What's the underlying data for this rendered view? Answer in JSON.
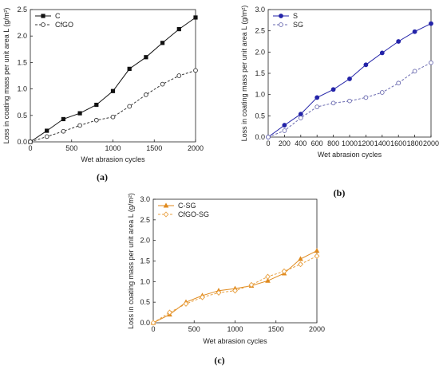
{
  "panel_labels": [
    "(a)",
    "(b)",
    "(c)"
  ],
  "chart_data": [
    {
      "type": "line",
      "panel": "(a)",
      "xlabel": "Wet abrasion cycles",
      "ylabel": "Loss in coating mass per unit area L (g/m²)",
      "xlim": [
        0,
        2000
      ],
      "ylim": [
        0,
        2.5
      ],
      "xticks": [
        "0",
        "500",
        "1000",
        "1500",
        "2000"
      ],
      "yticks": [
        "0.0",
        "0.5",
        "1.0",
        "1.5",
        "2.0",
        "2.5"
      ],
      "x": [
        0,
        200,
        400,
        600,
        800,
        1000,
        1200,
        1400,
        1600,
        1800,
        2000
      ],
      "legend": "top-left",
      "grid": false,
      "series": [
        {
          "name": "C",
          "color": "#111111",
          "style": "solid",
          "marker": "filled-square",
          "values": [
            0.0,
            0.21,
            0.43,
            0.54,
            0.7,
            0.96,
            1.38,
            1.6,
            1.87,
            2.13,
            2.35
          ]
        },
        {
          "name": "CfGO",
          "color": "#333333",
          "style": "dashed",
          "marker": "open-circle",
          "values": [
            0.0,
            0.1,
            0.2,
            0.31,
            0.41,
            0.47,
            0.67,
            0.89,
            1.09,
            1.25,
            1.35
          ]
        }
      ]
    },
    {
      "type": "line",
      "panel": "(b)",
      "xlabel": "Wet abrasion cycles",
      "ylabel": "Loss in coating mass per unit area L (g/m²)",
      "xlim": [
        0,
        2000
      ],
      "ylim": [
        0,
        3.0
      ],
      "xticks": [
        "0",
        "200",
        "400",
        "600",
        "800",
        "1000",
        "1200",
        "1400",
        "1600",
        "1800",
        "2000"
      ],
      "yticks": [
        "0.0",
        "0.5",
        "1.0",
        "1.5",
        "2.0",
        "2.5",
        "3.0"
      ],
      "x": [
        0,
        200,
        400,
        600,
        800,
        1000,
        1200,
        1400,
        1600,
        1800,
        2000
      ],
      "legend": "top-left",
      "grid": false,
      "series": [
        {
          "name": "S",
          "color": "#2323a8",
          "style": "solid",
          "marker": "filled-circle",
          "values": [
            0.0,
            0.28,
            0.54,
            0.93,
            1.12,
            1.37,
            1.7,
            1.98,
            2.25,
            2.48,
            2.67
          ]
        },
        {
          "name": "SG",
          "color": "#6a6ab0",
          "style": "dashed",
          "marker": "open-circle",
          "values": [
            0.0,
            0.15,
            0.45,
            0.71,
            0.8,
            0.85,
            0.93,
            1.05,
            1.27,
            1.55,
            1.75
          ]
        }
      ]
    },
    {
      "type": "line",
      "panel": "(c)",
      "xlabel": "Wet abrasion cycles",
      "ylabel": "Loss in coating mass per unit area L (g/m²)",
      "xlim": [
        0,
        2000
      ],
      "ylim": [
        0,
        3.0
      ],
      "xticks": [
        "0",
        "500",
        "1000",
        "1500",
        "2000"
      ],
      "yticks": [
        "0.0",
        "0.5",
        "1.0",
        "1.5",
        "2.0",
        "2.5",
        "3.0"
      ],
      "x": [
        0,
        200,
        400,
        600,
        800,
        1000,
        1200,
        1400,
        1600,
        1800,
        2000
      ],
      "legend": "top-left",
      "grid": false,
      "series": [
        {
          "name": "C-SG",
          "color": "#e08a1e",
          "style": "solid",
          "marker": "filled-triangle",
          "values": [
            0.0,
            0.2,
            0.5,
            0.66,
            0.78,
            0.83,
            0.9,
            1.02,
            1.2,
            1.55,
            1.75
          ]
        },
        {
          "name": "CfGO-SG",
          "color": "#e8a040",
          "style": "dashed",
          "marker": "open-diamond",
          "values": [
            0.0,
            0.25,
            0.46,
            0.62,
            0.73,
            0.78,
            0.92,
            1.12,
            1.25,
            1.42,
            1.62
          ]
        }
      ]
    }
  ]
}
